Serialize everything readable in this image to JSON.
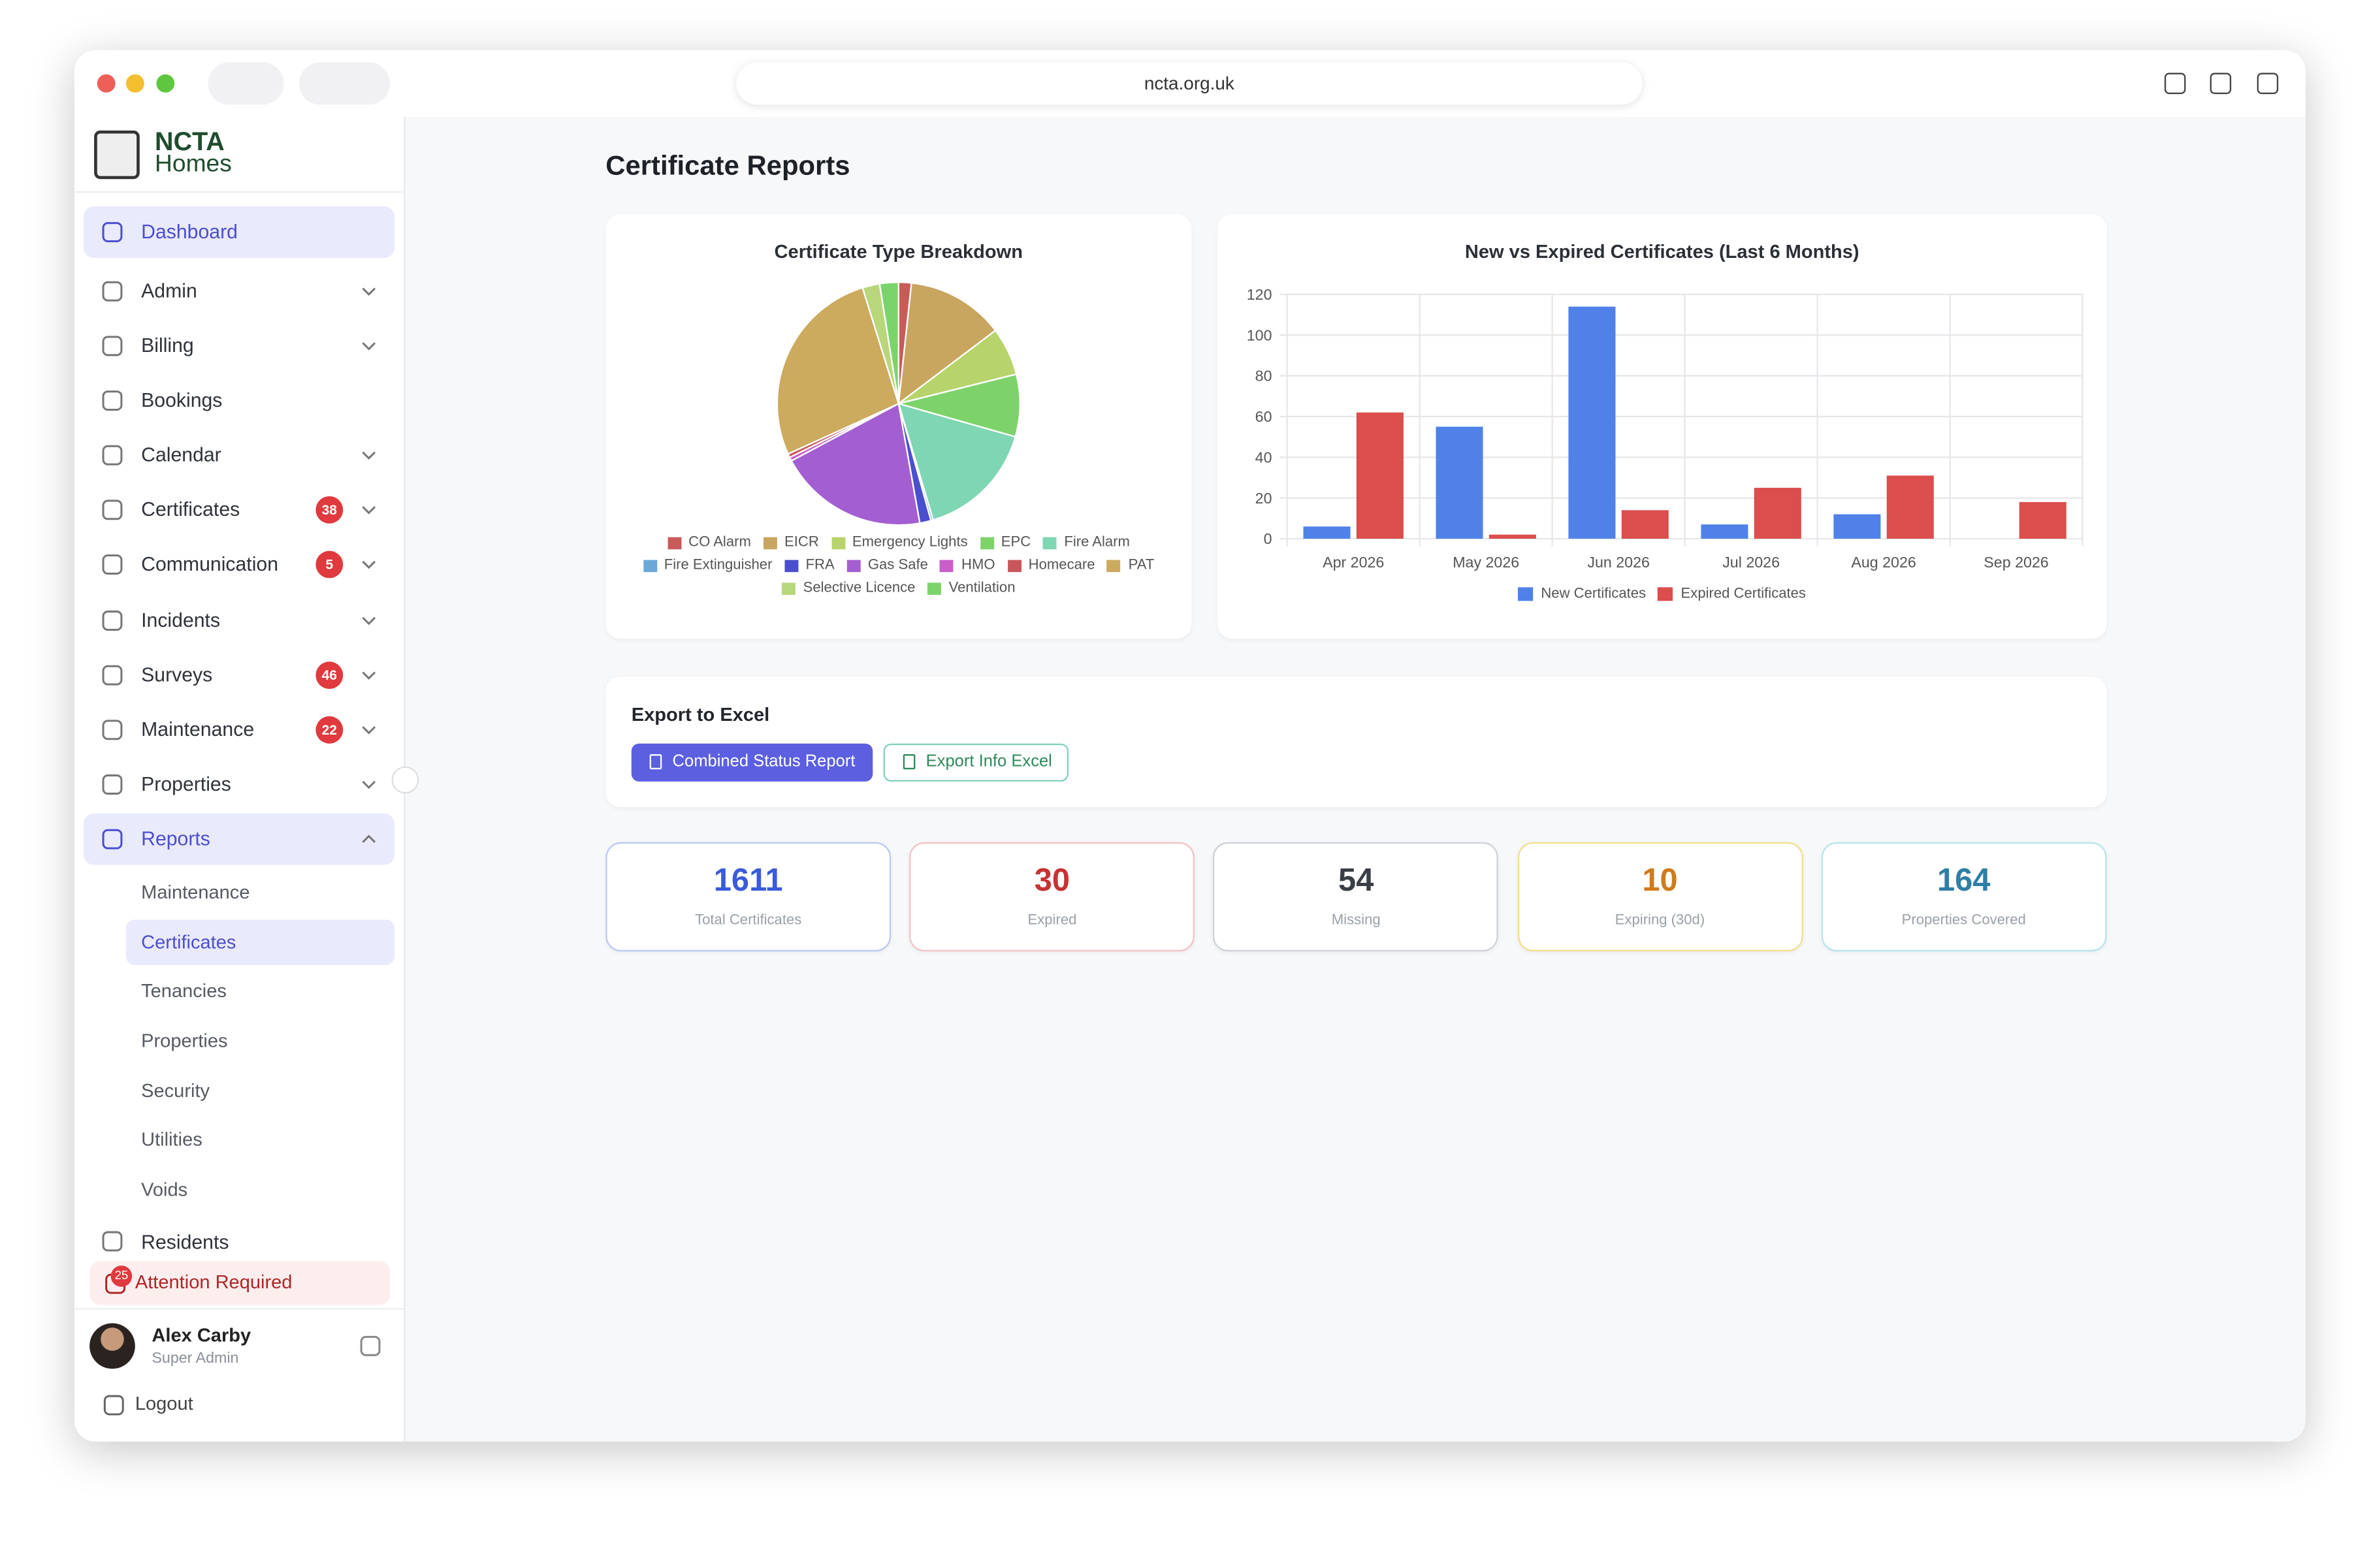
{
  "browser": {
    "url": "ncta.org.uk"
  },
  "sidebar": {
    "logo": {
      "line1": "NCTA",
      "line2": "Homes"
    },
    "nav": [
      {
        "label": "Dashboard",
        "active": true
      },
      {
        "label": "Admin",
        "expandable": true
      },
      {
        "label": "Billing",
        "expandable": true
      },
      {
        "label": "Bookings"
      },
      {
        "label": "Calendar",
        "expandable": true
      },
      {
        "label": "Certificates",
        "expandable": true,
        "badge": 38
      },
      {
        "label": "Communication",
        "expandable": true,
        "badge": 5
      },
      {
        "label": "Incidents",
        "expandable": true
      },
      {
        "label": "Surveys",
        "expandable": true,
        "badge": 46
      },
      {
        "label": "Maintenance",
        "expandable": true,
        "badge": 22
      },
      {
        "label": "Properties",
        "expandable": true
      },
      {
        "label": "Reports",
        "expandable": true,
        "expanded": true,
        "active": true
      }
    ],
    "subnav": [
      {
        "label": "Maintenance"
      },
      {
        "label": "Certificates",
        "active": true
      },
      {
        "label": "Tenancies"
      },
      {
        "label": "Properties"
      },
      {
        "label": "Security"
      },
      {
        "label": "Utilities"
      },
      {
        "label": "Voids"
      }
    ],
    "residents": "Residents",
    "attention": {
      "label": "Attention Required",
      "badge": 25
    },
    "user": {
      "name": "Alex Carby",
      "role": "Super Admin"
    },
    "logout": "Logout"
  },
  "main": {
    "title": "Certificate Reports",
    "export": {
      "title": "Export to Excel",
      "buttons": [
        "Combined Status Report",
        "Export Info Excel"
      ]
    },
    "stats": [
      {
        "value": 1611,
        "label": "Total Certificates",
        "color": "#3a5bd9",
        "border": "#bccbf2"
      },
      {
        "value": 30,
        "label": "Expired",
        "color": "#c83232",
        "border": "#f3c4c4"
      },
      {
        "value": 54,
        "label": "Missing",
        "color": "#3a3f47",
        "border": "#cfd3d9"
      },
      {
        "value": 10,
        "label": "Expiring (30d)",
        "color": "#d07a1c",
        "border": "#f2df90"
      },
      {
        "value": 164,
        "label": "Properties Covered",
        "color": "#2f7ea6",
        "border": "#b8e4ec"
      }
    ]
  },
  "chart_data": [
    {
      "type": "pie",
      "title": "Certificate Type Breakdown",
      "categories": [
        "CO Alarm",
        "EICR",
        "Emergency Lights",
        "EPC",
        "Fire Alarm",
        "Fire Extinguisher",
        "FRA",
        "Gas Safe",
        "HMO",
        "Homecare",
        "PAT",
        "Selective Licence",
        "Ventilation"
      ],
      "values": [
        1.7,
        13,
        6.4,
        8.3,
        16,
        0.3,
        1.5,
        20,
        0.5,
        0.5,
        27,
        2.3,
        2.5
      ],
      "colors": [
        "#c95a5a",
        "#c9a65f",
        "#b6d46b",
        "#7dd36a",
        "#7fd6b2",
        "#6ba8d8",
        "#4a4fd0",
        "#a35ed1",
        "#c95ec9",
        "#c9575a",
        "#ccaa5e",
        "#b8d77c",
        "#7bd46b"
      ],
      "legend": "bottom"
    },
    {
      "type": "bar",
      "title": "New vs Expired Certificates (Last 6 Months)",
      "categories": [
        "Apr 2026",
        "May 2026",
        "Jun 2026",
        "Jul 2026",
        "Aug 2026",
        "Sep 2026"
      ],
      "series": [
        {
          "name": "New Certificates",
          "color": "#4f81e8",
          "values": [
            6,
            55,
            114,
            7,
            12,
            0
          ]
        },
        {
          "name": "Expired Certificates",
          "color": "#dc4d4d",
          "values": [
            62,
            2,
            14,
            25,
            31,
            18
          ]
        }
      ],
      "ylim": [
        0,
        120
      ],
      "yticks": [
        0,
        20,
        40,
        60,
        80,
        100,
        120
      ],
      "grid": true,
      "legend": "bottom"
    }
  ]
}
